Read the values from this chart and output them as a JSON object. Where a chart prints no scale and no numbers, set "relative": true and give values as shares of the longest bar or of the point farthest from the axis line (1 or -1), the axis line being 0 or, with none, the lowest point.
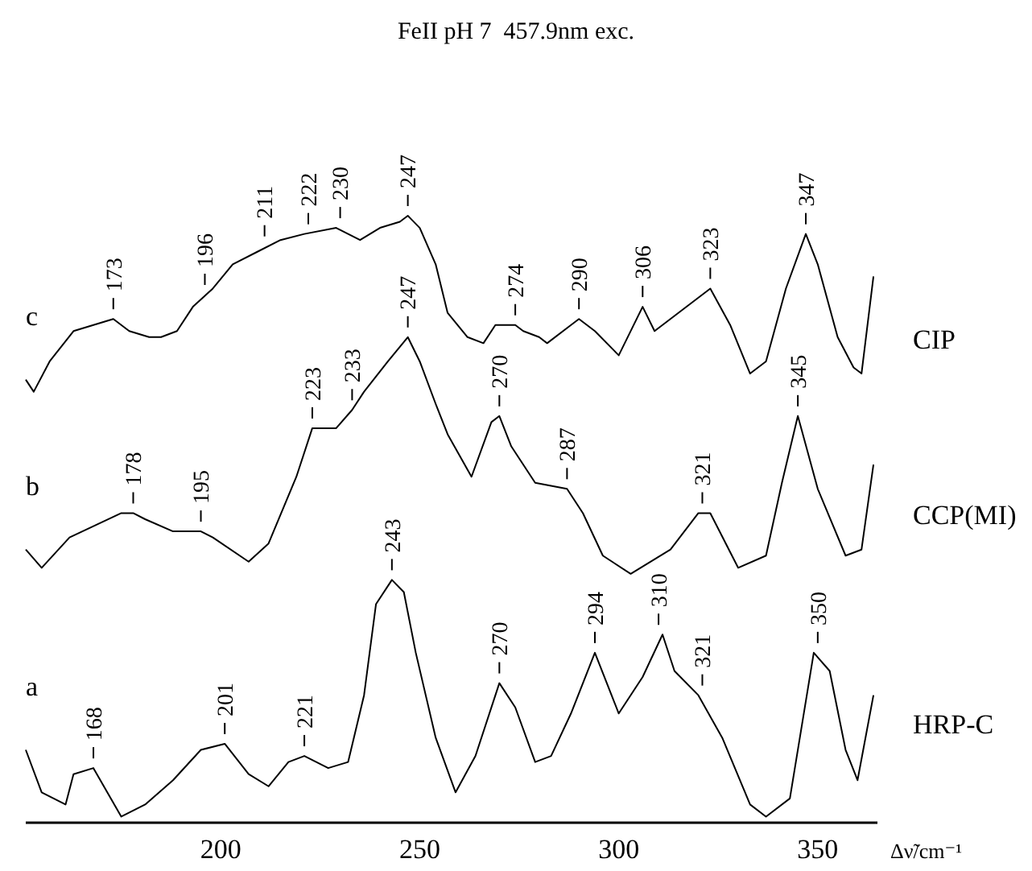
{
  "chart_data": {
    "type": "line",
    "title": "FeII pH 7  457.9nm exc.",
    "xlabel": "Δν̃/cm⁻¹",
    "relative": true,
    "xlim": [
      151,
      365
    ],
    "xticks": [
      200,
      250,
      300,
      350
    ],
    "grid": false,
    "series": [
      {
        "name": "CIP",
        "color": "#000000",
        "x": [
          151,
          153,
          157,
          163,
          168,
          173,
          177,
          182,
          185,
          189,
          193,
          198,
          203,
          209,
          215,
          221,
          229,
          235,
          240,
          245,
          247,
          250,
          254,
          257,
          262,
          266,
          269,
          274,
          276,
          280,
          282,
          288,
          290,
          294,
          300,
          306,
          309,
          323,
          328,
          333,
          337,
          342,
          347,
          350,
          355,
          359,
          361,
          364
        ],
        "values": [
          0.73,
          0.71,
          0.76,
          0.81,
          0.82,
          0.83,
          0.81,
          0.8,
          0.8,
          0.81,
          0.85,
          0.88,
          0.92,
          0.94,
          0.96,
          0.97,
          0.98,
          0.96,
          0.98,
          0.99,
          1.0,
          0.98,
          0.92,
          0.84,
          0.8,
          0.79,
          0.82,
          0.82,
          0.81,
          0.8,
          0.79,
          0.82,
          0.83,
          0.81,
          0.77,
          0.85,
          0.81,
          0.88,
          0.82,
          0.74,
          0.76,
          0.88,
          0.97,
          0.92,
          0.8,
          0.75,
          0.74,
          0.9
        ]
      },
      {
        "name": "CCP(MI)",
        "color": "#000000",
        "x": [
          151,
          155,
          162,
          175,
          178,
          181,
          188,
          195,
          198,
          207,
          212,
          219,
          223,
          229,
          233,
          236,
          242,
          247,
          250,
          254,
          257,
          263,
          268,
          270,
          273,
          279,
          287,
          291,
          296,
          303,
          313,
          320,
          323,
          330,
          337,
          341,
          345,
          350,
          357,
          361,
          364
        ],
        "values": [
          0.45,
          0.42,
          0.47,
          0.51,
          0.51,
          0.5,
          0.48,
          0.48,
          0.47,
          0.43,
          0.46,
          0.57,
          0.65,
          0.65,
          0.68,
          0.71,
          0.76,
          0.8,
          0.76,
          0.69,
          0.64,
          0.57,
          0.66,
          0.67,
          0.62,
          0.56,
          0.55,
          0.51,
          0.44,
          0.41,
          0.45,
          0.51,
          0.51,
          0.42,
          0.44,
          0.56,
          0.67,
          0.55,
          0.44,
          0.45,
          0.59
        ]
      },
      {
        "name": "HRP-C",
        "color": "#000000",
        "x": [
          151,
          155,
          161,
          163,
          168,
          175,
          181,
          188,
          195,
          201,
          207,
          212,
          217,
          221,
          227,
          232,
          236,
          239,
          243,
          246,
          249,
          254,
          259,
          264,
          270,
          274,
          279,
          283,
          288,
          294,
          300,
          306,
          311,
          314,
          320,
          326,
          333,
          337,
          343,
          349,
          353,
          357,
          360,
          364
        ],
        "values": [
          0.12,
          0.05,
          0.03,
          0.08,
          0.09,
          0.01,
          0.03,
          0.07,
          0.12,
          0.13,
          0.08,
          0.06,
          0.1,
          0.11,
          0.09,
          0.1,
          0.21,
          0.36,
          0.4,
          0.38,
          0.28,
          0.14,
          0.05,
          0.11,
          0.23,
          0.19,
          0.1,
          0.11,
          0.18,
          0.28,
          0.18,
          0.24,
          0.31,
          0.25,
          0.21,
          0.14,
          0.03,
          0.01,
          0.04,
          0.28,
          0.25,
          0.12,
          0.07,
          0.21
        ]
      }
    ],
    "annotations": [
      "c",
      "b",
      "a",
      {
        "text": "173",
        "x": 173,
        "y": 0.83
      },
      {
        "text": "196",
        "x": 196,
        "y": 0.87
      },
      {
        "text": "211",
        "x": 211,
        "y": 0.95
      },
      {
        "text": "222",
        "x": 222,
        "y": 0.97
      },
      {
        "text": "230",
        "x": 230,
        "y": 0.98
      },
      {
        "text": "247",
        "x": 247,
        "y": 1.0
      },
      {
        "text": "274",
        "x": 274,
        "y": 0.82
      },
      {
        "text": "290",
        "x": 290,
        "y": 0.83
      },
      {
        "text": "306",
        "x": 306,
        "y": 0.85
      },
      {
        "text": "323",
        "x": 323,
        "y": 0.88
      },
      {
        "text": "347",
        "x": 347,
        "y": 0.97
      },
      {
        "text": "178",
        "x": 178,
        "y": 0.51
      },
      {
        "text": "195",
        "x": 195,
        "y": 0.48
      },
      {
        "text": "223",
        "x": 223,
        "y": 0.65
      },
      {
        "text": "233",
        "x": 233,
        "y": 0.68
      },
      {
        "text": "247",
        "x": 247,
        "y": 0.8
      },
      {
        "text": "270",
        "x": 270,
        "y": 0.67
      },
      {
        "text": "287",
        "x": 287,
        "y": 0.55
      },
      {
        "text": "321",
        "x": 321,
        "y": 0.51
      },
      {
        "text": "345",
        "x": 345,
        "y": 0.67
      },
      {
        "text": "168",
        "x": 168,
        "y": 0.09
      },
      {
        "text": "201",
        "x": 201,
        "y": 0.13
      },
      {
        "text": "221",
        "x": 221,
        "y": 0.11
      },
      {
        "text": "243",
        "x": 243,
        "y": 0.4
      },
      {
        "text": "270",
        "x": 270,
        "y": 0.23
      },
      {
        "text": "294",
        "x": 294,
        "y": 0.28
      },
      {
        "text": "310",
        "x": 310,
        "y": 0.31
      },
      {
        "text": "321",
        "x": 321,
        "y": 0.21
      },
      {
        "text": "350",
        "x": 350,
        "y": 0.28
      }
    ]
  }
}
